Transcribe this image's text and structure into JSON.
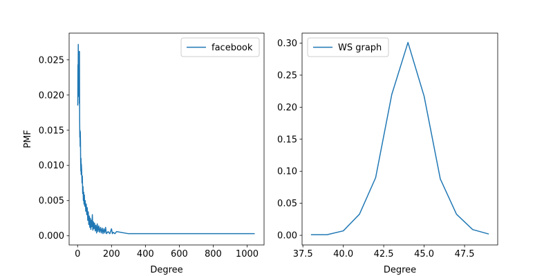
{
  "colors": {
    "line": "#1f77b4",
    "axes": "#000000",
    "background": "#ffffff",
    "legend_border": "#cccccc"
  },
  "chart_data": [
    {
      "type": "line",
      "xlabel": "Degree",
      "ylabel": "PMF",
      "xlim": [
        -50,
        1100
      ],
      "ylim": [
        -0.0013,
        0.0288
      ],
      "xticks": [
        0,
        200,
        400,
        600,
        800,
        1000
      ],
      "xtick_labels": [
        "0",
        "200",
        "400",
        "600",
        "800",
        "1000"
      ],
      "yticks": [
        0.0,
        0.005,
        0.01,
        0.015,
        0.02,
        0.025
      ],
      "ytick_labels": [
        "0.000",
        "0.005",
        "0.010",
        "0.015",
        "0.020",
        "0.025"
      ],
      "grid": false,
      "legend": "upper right",
      "series": [
        {
          "name": "facebook",
          "x": [
            1,
            2,
            3,
            4,
            5,
            6,
            7,
            8,
            9,
            10,
            11,
            12,
            13,
            14,
            15,
            16,
            17,
            18,
            19,
            20,
            21,
            22,
            24,
            26,
            28,
            30,
            32,
            34,
            36,
            38,
            40,
            42,
            45,
            48,
            51,
            54,
            57,
            60,
            63,
            66,
            69,
            72,
            75,
            78,
            81,
            84,
            87,
            90,
            93,
            96,
            100,
            104,
            108,
            112,
            116,
            120,
            125,
            130,
            135,
            140,
            145,
            150,
            155,
            160,
            165,
            170,
            180,
            190,
            200,
            205,
            210,
            220,
            230,
            300,
            400,
            500,
            600,
            700,
            800,
            900,
            1000,
            1045
          ],
          "y": [
            0.0185,
            0.0243,
            0.0205,
            0.0272,
            0.0228,
            0.0198,
            0.0262,
            0.0216,
            0.0255,
            0.0188,
            0.0262,
            0.0168,
            0.014,
            0.015,
            0.0127,
            0.0148,
            0.0132,
            0.0105,
            0.0092,
            0.011,
            0.0087,
            0.0102,
            0.0093,
            0.0075,
            0.0085,
            0.006,
            0.007,
            0.005,
            0.0062,
            0.0045,
            0.0058,
            0.0042,
            0.005,
            0.0035,
            0.0045,
            0.003,
            0.004,
            0.0022,
            0.0034,
            0.0016,
            0.0028,
            0.0012,
            0.0025,
            0.0009,
            0.0022,
            0.0013,
            0.003,
            0.0008,
            0.002,
            0.001,
            0.0018,
            0.0007,
            0.0015,
            0.0004,
            0.0017,
            0.0006,
            0.0014,
            0.0005,
            0.0012,
            0.0004,
            0.0011,
            0.0003,
            0.001,
            0.0004,
            0.0012,
            0.0003,
            0.0006,
            0.0003,
            0.001,
            0.0003,
            0.0005,
            0.0003,
            0.0006,
            0.0003,
            0.0003,
            0.0003,
            0.0003,
            0.0003,
            0.0003,
            0.0003,
            0.0003,
            0.0003
          ]
        }
      ]
    },
    {
      "type": "line",
      "xlabel": "Degree",
      "ylabel": "",
      "xlim": [
        37.45,
        49.55
      ],
      "ylim": [
        -0.015,
        0.3156
      ],
      "xticks": [
        37.5,
        40.0,
        42.5,
        45.0,
        47.5
      ],
      "xtick_labels": [
        "37.5",
        "40.0",
        "42.5",
        "45.0",
        "47.5"
      ],
      "yticks": [
        0.0,
        0.05,
        0.1,
        0.15,
        0.2,
        0.25,
        0.3
      ],
      "ytick_labels": [
        "0.00",
        "0.05",
        "0.10",
        "0.15",
        "0.20",
        "0.25",
        "0.30"
      ],
      "grid": false,
      "legend": "upper left",
      "series": [
        {
          "name": "WS graph",
          "x": [
            38,
            39,
            40,
            41,
            42,
            43,
            44,
            45,
            46,
            47,
            48,
            49
          ],
          "y": [
            0.001,
            0.001,
            0.007,
            0.033,
            0.09,
            0.22,
            0.301,
            0.217,
            0.088,
            0.033,
            0.009,
            0.002
          ]
        }
      ]
    }
  ]
}
